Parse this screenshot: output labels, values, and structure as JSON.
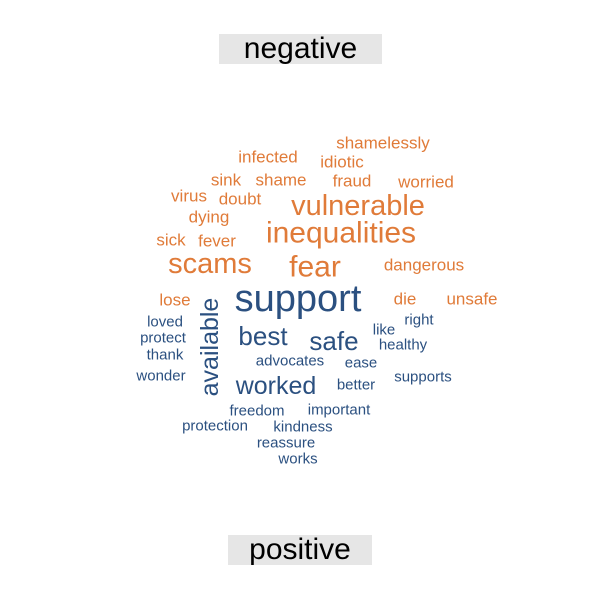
{
  "chart_data": {
    "type": "wordcloud",
    "groups": [
      {
        "name": "negative",
        "color": "#e07b39",
        "words": [
          {
            "text": "scams",
            "freq": 5
          },
          {
            "text": "fear",
            "freq": 5
          },
          {
            "text": "vulnerable",
            "freq": 5
          },
          {
            "text": "inequalities",
            "freq": 5
          },
          {
            "text": "shamelessly",
            "freq": 2
          },
          {
            "text": "infected",
            "freq": 2
          },
          {
            "text": "idiotic",
            "freq": 2
          },
          {
            "text": "sink",
            "freq": 2
          },
          {
            "text": "shame",
            "freq": 2
          },
          {
            "text": "fraud",
            "freq": 2
          },
          {
            "text": "worried",
            "freq": 2
          },
          {
            "text": "virus",
            "freq": 2
          },
          {
            "text": "doubt",
            "freq": 2
          },
          {
            "text": "dying",
            "freq": 2
          },
          {
            "text": "sick",
            "freq": 2
          },
          {
            "text": "fever",
            "freq": 2
          },
          {
            "text": "dangerous",
            "freq": 2
          },
          {
            "text": "lose",
            "freq": 2
          },
          {
            "text": "die",
            "freq": 2
          },
          {
            "text": "unsafe",
            "freq": 2
          }
        ]
      },
      {
        "name": "positive",
        "color": "#2b5080",
        "words": [
          {
            "text": "support",
            "freq": 8
          },
          {
            "text": "available",
            "freq": 5
          },
          {
            "text": "best",
            "freq": 4
          },
          {
            "text": "safe",
            "freq": 4
          },
          {
            "text": "worked",
            "freq": 4
          },
          {
            "text": "loved",
            "freq": 1
          },
          {
            "text": "protect",
            "freq": 1
          },
          {
            "text": "thank",
            "freq": 1
          },
          {
            "text": "wonder",
            "freq": 1
          },
          {
            "text": "like",
            "freq": 1
          },
          {
            "text": "right",
            "freq": 1
          },
          {
            "text": "healthy",
            "freq": 1
          },
          {
            "text": "advocates",
            "freq": 1
          },
          {
            "text": "ease",
            "freq": 1
          },
          {
            "text": "better",
            "freq": 1
          },
          {
            "text": "supports",
            "freq": 1
          },
          {
            "text": "freedom",
            "freq": 1
          },
          {
            "text": "important",
            "freq": 1
          },
          {
            "text": "protection",
            "freq": 1
          },
          {
            "text": "kindness",
            "freq": 1
          },
          {
            "text": "reassure",
            "freq": 1
          },
          {
            "text": "works",
            "freq": 1
          }
        ]
      }
    ]
  }
}
